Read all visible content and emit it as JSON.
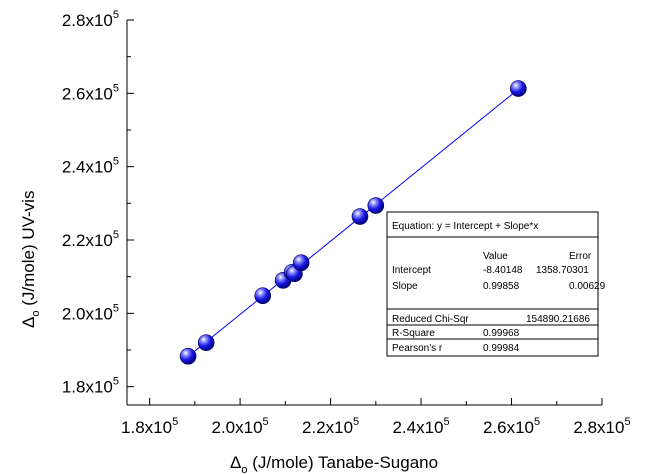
{
  "chart_data": {
    "type": "scatter",
    "xlabel": {
      "symbol": "Δ",
      "subscript": "o",
      "text": " (J/mole) Tanabe-Sugano"
    },
    "ylabel": {
      "symbol": "Δ",
      "subscript": "o",
      "text": " (J/mole) UV-vis"
    },
    "xlim": [
      175000,
      280000
    ],
    "ylim": [
      175000,
      280000
    ],
    "x_ticks": [
      180000,
      200000,
      220000,
      240000,
      260000,
      280000
    ],
    "y_ticks": [
      180000,
      200000,
      220000,
      240000,
      260000,
      280000
    ],
    "tick_label_mantissa": [
      "1.8",
      "2.0",
      "2.2",
      "2.4",
      "2.6",
      "2.8"
    ],
    "tick_label_base": "x10",
    "tick_label_exponent": "5",
    "grid": false,
    "series": [
      {
        "points": [
          {
            "x": 188500,
            "y": 188300
          },
          {
            "x": 192500,
            "y": 192000
          },
          {
            "x": 205000,
            "y": 204800
          },
          {
            "x": 209500,
            "y": 209000
          },
          {
            "x": 211500,
            "y": 211200
          },
          {
            "x": 212000,
            "y": 210800
          },
          {
            "x": 213500,
            "y": 213800
          },
          {
            "x": 226500,
            "y": 226400
          },
          {
            "x": 230000,
            "y": 229400
          },
          {
            "x": 261500,
            "y": 261300
          }
        ]
      }
    ],
    "fit": {
      "intercept": -8.40148,
      "slope": 0.99858,
      "x_range": [
        188500,
        261500
      ],
      "color": "#0000ff"
    },
    "stats_box": {
      "equation": "Equation: y = Intercept + Slope*x",
      "headers": [
        "Value",
        "Error"
      ],
      "rows": [
        {
          "label": "Intercept",
          "value": "-8.40148",
          "error": "1358.70301"
        },
        {
          "label": "Slope",
          "value": "0.99858",
          "error": "0.00629"
        }
      ],
      "chi": {
        "label": "Reduced Chi-Sqr",
        "value": "154890.21686"
      },
      "r_square": {
        "label": "R-Square",
        "value": "0.99968"
      },
      "pearson": {
        "label": "Pearson's r",
        "value": "0.99984"
      }
    },
    "colors": {
      "marker": "#1a1ae6",
      "marker_highlight": "#ffffff",
      "line": "#0000ff"
    }
  }
}
